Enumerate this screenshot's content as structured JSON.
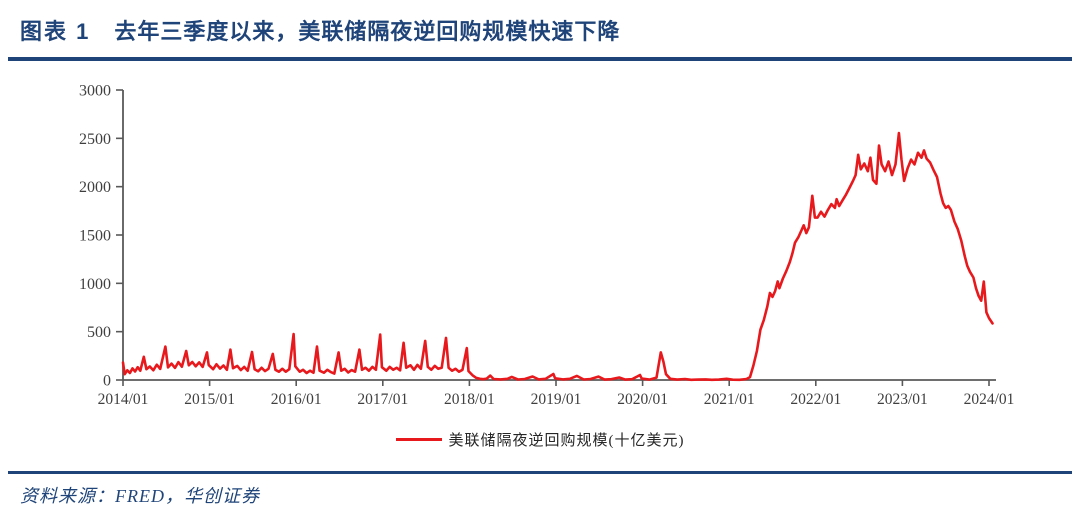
{
  "figure": {
    "label": "图表 1",
    "title": "去年三季度以来，美联储隔夜逆回购规模快速下降",
    "source": "资料来源：FRED，华创证券"
  },
  "colors": {
    "accent_navy": "#1F4479",
    "series_red": "#E8191D",
    "axis": "#595959",
    "tick_label": "#3F3F3F",
    "legend_text": "#262626"
  },
  "chart_data": {
    "type": "line",
    "title": "",
    "xlabel": "",
    "ylabel": "",
    "grid": false,
    "legend_position": "bottom",
    "ylim": [
      0,
      3000
    ],
    "xlim": [
      2014.0,
      2024.1
    ],
    "y_ticks": [
      0,
      500,
      1000,
      1500,
      2000,
      2500,
      3000
    ],
    "x_ticks": [
      "2014/01",
      "2015/01",
      "2016/01",
      "2017/01",
      "2018/01",
      "2019/01",
      "2020/01",
      "2021/01",
      "2022/01",
      "2023/01",
      "2024/01"
    ],
    "x_tick_values": [
      2014,
      2015,
      2016,
      2017,
      2018,
      2019,
      2020,
      2021,
      2022,
      2023,
      2024
    ],
    "series": [
      {
        "name": "美联储隔夜逆回购规模(十亿美元)",
        "color": "#E8191D",
        "points": [
          [
            2014.0,
            180
          ],
          [
            2014.02,
            60
          ],
          [
            2014.05,
            100
          ],
          [
            2014.08,
            72
          ],
          [
            2014.11,
            120
          ],
          [
            2014.14,
            88
          ],
          [
            2014.17,
            132
          ],
          [
            2014.2,
            96
          ],
          [
            2014.24,
            240
          ],
          [
            2014.27,
            112
          ],
          [
            2014.31,
            140
          ],
          [
            2014.35,
            100
          ],
          [
            2014.39,
            158
          ],
          [
            2014.43,
            115
          ],
          [
            2014.49,
            345
          ],
          [
            2014.52,
            130
          ],
          [
            2014.56,
            170
          ],
          [
            2014.6,
            125
          ],
          [
            2014.64,
            185
          ],
          [
            2014.68,
            138
          ],
          [
            2014.73,
            300
          ],
          [
            2014.76,
            152
          ],
          [
            2014.8,
            186
          ],
          [
            2014.84,
            142
          ],
          [
            2014.88,
            182
          ],
          [
            2014.92,
            136
          ],
          [
            2014.97,
            285
          ],
          [
            2014.99,
            155
          ],
          [
            2015.04,
            112
          ],
          [
            2015.08,
            162
          ],
          [
            2015.12,
            118
          ],
          [
            2015.16,
            150
          ],
          [
            2015.2,
            106
          ],
          [
            2015.24,
            315
          ],
          [
            2015.27,
            122
          ],
          [
            2015.32,
            146
          ],
          [
            2015.36,
            102
          ],
          [
            2015.4,
            136
          ],
          [
            2015.44,
            96
          ],
          [
            2015.49,
            290
          ],
          [
            2015.52,
            112
          ],
          [
            2015.56,
            90
          ],
          [
            2015.6,
            126
          ],
          [
            2015.64,
            92
          ],
          [
            2015.68,
            116
          ],
          [
            2015.73,
            270
          ],
          [
            2015.76,
            106
          ],
          [
            2015.8,
            86
          ],
          [
            2015.84,
            116
          ],
          [
            2015.88,
            86
          ],
          [
            2015.92,
            112
          ],
          [
            2015.97,
            475
          ],
          [
            2015.99,
            142
          ],
          [
            2016.04,
            86
          ],
          [
            2016.08,
            106
          ],
          [
            2016.12,
            72
          ],
          [
            2016.16,
            96
          ],
          [
            2016.2,
            76
          ],
          [
            2016.24,
            345
          ],
          [
            2016.27,
            96
          ],
          [
            2016.32,
            76
          ],
          [
            2016.36,
            106
          ],
          [
            2016.4,
            82
          ],
          [
            2016.44,
            66
          ],
          [
            2016.49,
            285
          ],
          [
            2016.52,
            96
          ],
          [
            2016.56,
            116
          ],
          [
            2016.6,
            78
          ],
          [
            2016.64,
            102
          ],
          [
            2016.68,
            86
          ],
          [
            2016.73,
            315
          ],
          [
            2016.76,
            106
          ],
          [
            2016.8,
            126
          ],
          [
            2016.84,
            96
          ],
          [
            2016.88,
            136
          ],
          [
            2016.92,
            106
          ],
          [
            2016.97,
            470
          ],
          [
            2016.99,
            132
          ],
          [
            2017.04,
            96
          ],
          [
            2017.08,
            136
          ],
          [
            2017.12,
            106
          ],
          [
            2017.16,
            126
          ],
          [
            2017.2,
            100
          ],
          [
            2017.24,
            385
          ],
          [
            2017.27,
            126
          ],
          [
            2017.32,
            152
          ],
          [
            2017.36,
            106
          ],
          [
            2017.4,
            156
          ],
          [
            2017.44,
            116
          ],
          [
            2017.49,
            405
          ],
          [
            2017.52,
            136
          ],
          [
            2017.56,
            106
          ],
          [
            2017.6,
            146
          ],
          [
            2017.64,
            116
          ],
          [
            2017.68,
            126
          ],
          [
            2017.73,
            435
          ],
          [
            2017.76,
            126
          ],
          [
            2017.8,
            96
          ],
          [
            2017.84,
            116
          ],
          [
            2017.88,
            86
          ],
          [
            2017.92,
            106
          ],
          [
            2017.97,
            330
          ],
          [
            2017.99,
            92
          ],
          [
            2018.04,
            46
          ],
          [
            2018.08,
            22
          ],
          [
            2018.12,
            12
          ],
          [
            2018.16,
            8
          ],
          [
            2018.2,
            14
          ],
          [
            2018.24,
            46
          ],
          [
            2018.28,
            10
          ],
          [
            2018.36,
            6
          ],
          [
            2018.44,
            12
          ],
          [
            2018.49,
            32
          ],
          [
            2018.56,
            5
          ],
          [
            2018.64,
            10
          ],
          [
            2018.73,
            36
          ],
          [
            2018.8,
            6
          ],
          [
            2018.88,
            12
          ],
          [
            2018.97,
            62
          ],
          [
            2018.99,
            18
          ],
          [
            2019.08,
            6
          ],
          [
            2019.16,
            12
          ],
          [
            2019.24,
            42
          ],
          [
            2019.32,
            5
          ],
          [
            2019.4,
            10
          ],
          [
            2019.49,
            35
          ],
          [
            2019.56,
            4
          ],
          [
            2019.64,
            8
          ],
          [
            2019.73,
            26
          ],
          [
            2019.8,
            4
          ],
          [
            2019.88,
            8
          ],
          [
            2019.97,
            52
          ],
          [
            2019.99,
            14
          ],
          [
            2020.08,
            4
          ],
          [
            2020.16,
            25
          ],
          [
            2020.21,
            285
          ],
          [
            2020.24,
            190
          ],
          [
            2020.27,
            60
          ],
          [
            2020.32,
            12
          ],
          [
            2020.4,
            4
          ],
          [
            2020.49,
            10
          ],
          [
            2020.56,
            2
          ],
          [
            2020.64,
            4
          ],
          [
            2020.73,
            6
          ],
          [
            2020.8,
            2
          ],
          [
            2020.88,
            4
          ],
          [
            2020.97,
            12
          ],
          [
            2021.04,
            3
          ],
          [
            2021.12,
            2
          ],
          [
            2021.2,
            10
          ],
          [
            2021.24,
            30
          ],
          [
            2021.28,
            150
          ],
          [
            2021.32,
            300
          ],
          [
            2021.36,
            520
          ],
          [
            2021.4,
            620
          ],
          [
            2021.44,
            760
          ],
          [
            2021.47,
            900
          ],
          [
            2021.5,
            860
          ],
          [
            2021.53,
            920
          ],
          [
            2021.56,
            1020
          ],
          [
            2021.58,
            950
          ],
          [
            2021.62,
            1050
          ],
          [
            2021.66,
            1130
          ],
          [
            2021.7,
            1220
          ],
          [
            2021.73,
            1310
          ],
          [
            2021.76,
            1420
          ],
          [
            2021.8,
            1480
          ],
          [
            2021.83,
            1540
          ],
          [
            2021.86,
            1600
          ],
          [
            2021.89,
            1520
          ],
          [
            2021.92,
            1580
          ],
          [
            2021.96,
            1905
          ],
          [
            2021.99,
            1680
          ],
          [
            2022.02,
            1680
          ],
          [
            2022.06,
            1740
          ],
          [
            2022.1,
            1690
          ],
          [
            2022.14,
            1760
          ],
          [
            2022.18,
            1820
          ],
          [
            2022.22,
            1780
          ],
          [
            2022.24,
            1870
          ],
          [
            2022.27,
            1800
          ],
          [
            2022.31,
            1860
          ],
          [
            2022.35,
            1920
          ],
          [
            2022.39,
            1990
          ],
          [
            2022.43,
            2060
          ],
          [
            2022.46,
            2120
          ],
          [
            2022.49,
            2330
          ],
          [
            2022.52,
            2180
          ],
          [
            2022.56,
            2240
          ],
          [
            2022.6,
            2160
          ],
          [
            2022.63,
            2300
          ],
          [
            2022.66,
            2070
          ],
          [
            2022.7,
            2030
          ],
          [
            2022.73,
            2425
          ],
          [
            2022.76,
            2230
          ],
          [
            2022.8,
            2160
          ],
          [
            2022.84,
            2260
          ],
          [
            2022.88,
            2120
          ],
          [
            2022.92,
            2230
          ],
          [
            2022.96,
            2554
          ],
          [
            2022.99,
            2280
          ],
          [
            2023.02,
            2060
          ],
          [
            2023.06,
            2190
          ],
          [
            2023.1,
            2280
          ],
          [
            2023.14,
            2230
          ],
          [
            2023.18,
            2350
          ],
          [
            2023.22,
            2300
          ],
          [
            2023.25,
            2375
          ],
          [
            2023.28,
            2290
          ],
          [
            2023.32,
            2250
          ],
          [
            2023.36,
            2170
          ],
          [
            2023.4,
            2100
          ],
          [
            2023.44,
            1930
          ],
          [
            2023.47,
            1830
          ],
          [
            2023.5,
            1780
          ],
          [
            2023.53,
            1800
          ],
          [
            2023.56,
            1760
          ],
          [
            2023.6,
            1640
          ],
          [
            2023.64,
            1560
          ],
          [
            2023.68,
            1440
          ],
          [
            2023.72,
            1280
          ],
          [
            2023.75,
            1180
          ],
          [
            2023.78,
            1120
          ],
          [
            2023.82,
            1060
          ],
          [
            2023.85,
            950
          ],
          [
            2023.88,
            870
          ],
          [
            2023.91,
            820
          ],
          [
            2023.94,
            1018
          ],
          [
            2023.97,
            700
          ],
          [
            2024.0,
            640
          ],
          [
            2024.04,
            585
          ]
        ]
      }
    ]
  }
}
